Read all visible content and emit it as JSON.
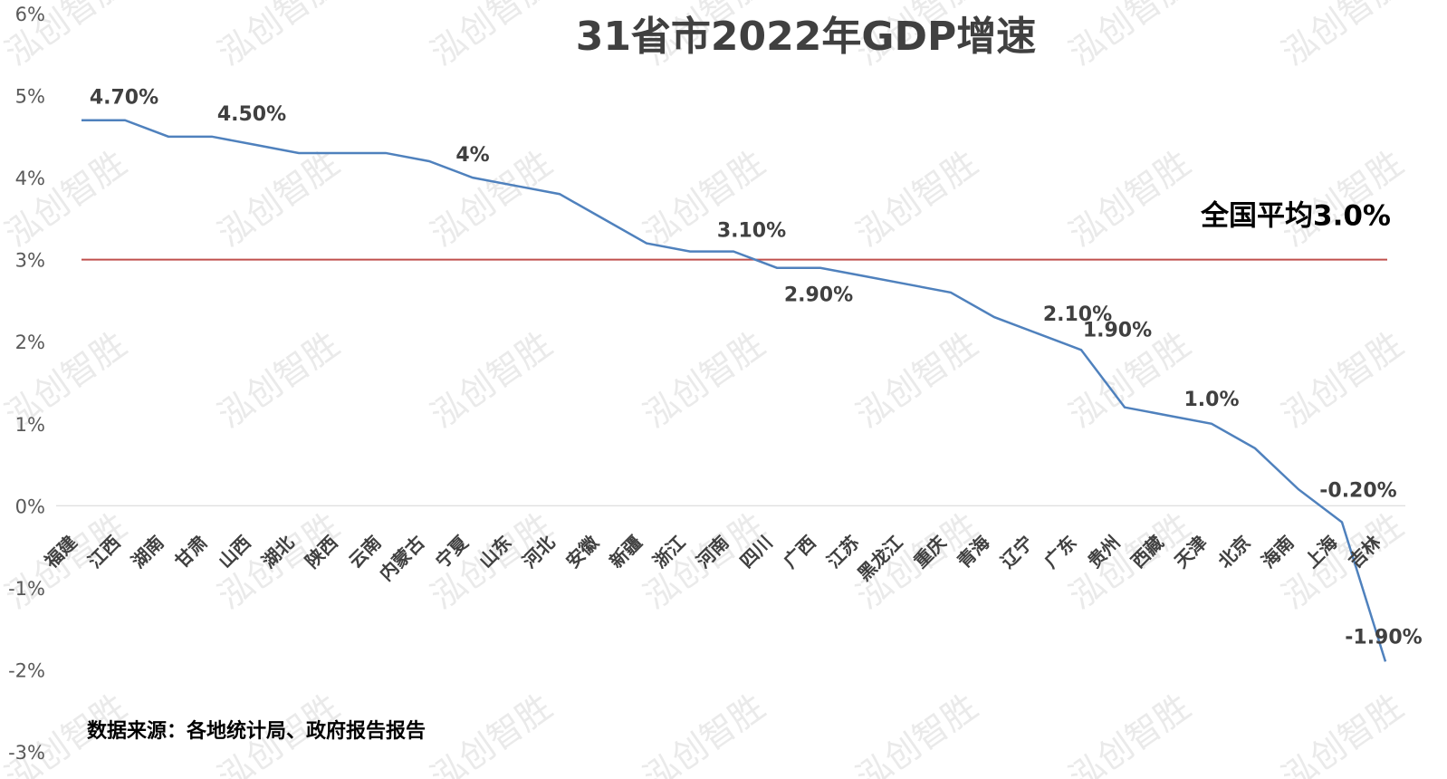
{
  "chart_data": {
    "type": "line",
    "title": "31省市2022年GDP增速",
    "categories": [
      "福建",
      "江西",
      "湖南",
      "甘肃",
      "山西",
      "湖北",
      "陕西",
      "云南",
      "内蒙古",
      "宁夏",
      "山东",
      "河北",
      "安徽",
      "新疆",
      "浙江",
      "河南",
      "四川",
      "广西",
      "江苏",
      "黑龙江",
      "重庆",
      "青海",
      "辽宁",
      "广东",
      "贵州",
      "西藏",
      "天津",
      "北京",
      "海南",
      "上海",
      "吉林"
    ],
    "values": [
      4.7,
      4.7,
      4.5,
      4.5,
      4.4,
      4.3,
      4.3,
      4.3,
      4.2,
      4.0,
      3.9,
      3.8,
      3.5,
      3.2,
      3.1,
      3.1,
      2.9,
      2.9,
      2.8,
      2.7,
      2.6,
      2.3,
      2.1,
      1.9,
      1.2,
      1.1,
      1.0,
      0.7,
      0.2,
      -0.2,
      -1.9
    ],
    "data_labels": [
      {
        "index": 0,
        "text": "4.70%"
      },
      {
        "index": 3,
        "text": "4.50%"
      },
      {
        "index": 9,
        "text": "4%"
      },
      {
        "index": 15,
        "text": "3.10%"
      },
      {
        "index": 17,
        "text": "2.90%"
      },
      {
        "index": 22,
        "text": "2.10%"
      },
      {
        "index": 23,
        "text": "1.90%"
      },
      {
        "index": 26,
        "text": "1.0%"
      },
      {
        "index": 29,
        "text": "-0.20%"
      },
      {
        "index": 30,
        "text": "-1.90%"
      }
    ],
    "y_ticks": [
      "6%",
      "5%",
      "4%",
      "3%",
      "2%",
      "1%",
      "0%",
      "-1%",
      "-2%",
      "-3%"
    ],
    "ylim": [
      -3,
      6
    ],
    "reference_line": {
      "value": 3.0,
      "label": "全国平均3.0%",
      "color": "#c0504d"
    },
    "line_color": "#4f81bd",
    "grid": false
  },
  "source_note": "数据来源：各地统计局、政府报告报告",
  "watermark": "泓创智胜"
}
